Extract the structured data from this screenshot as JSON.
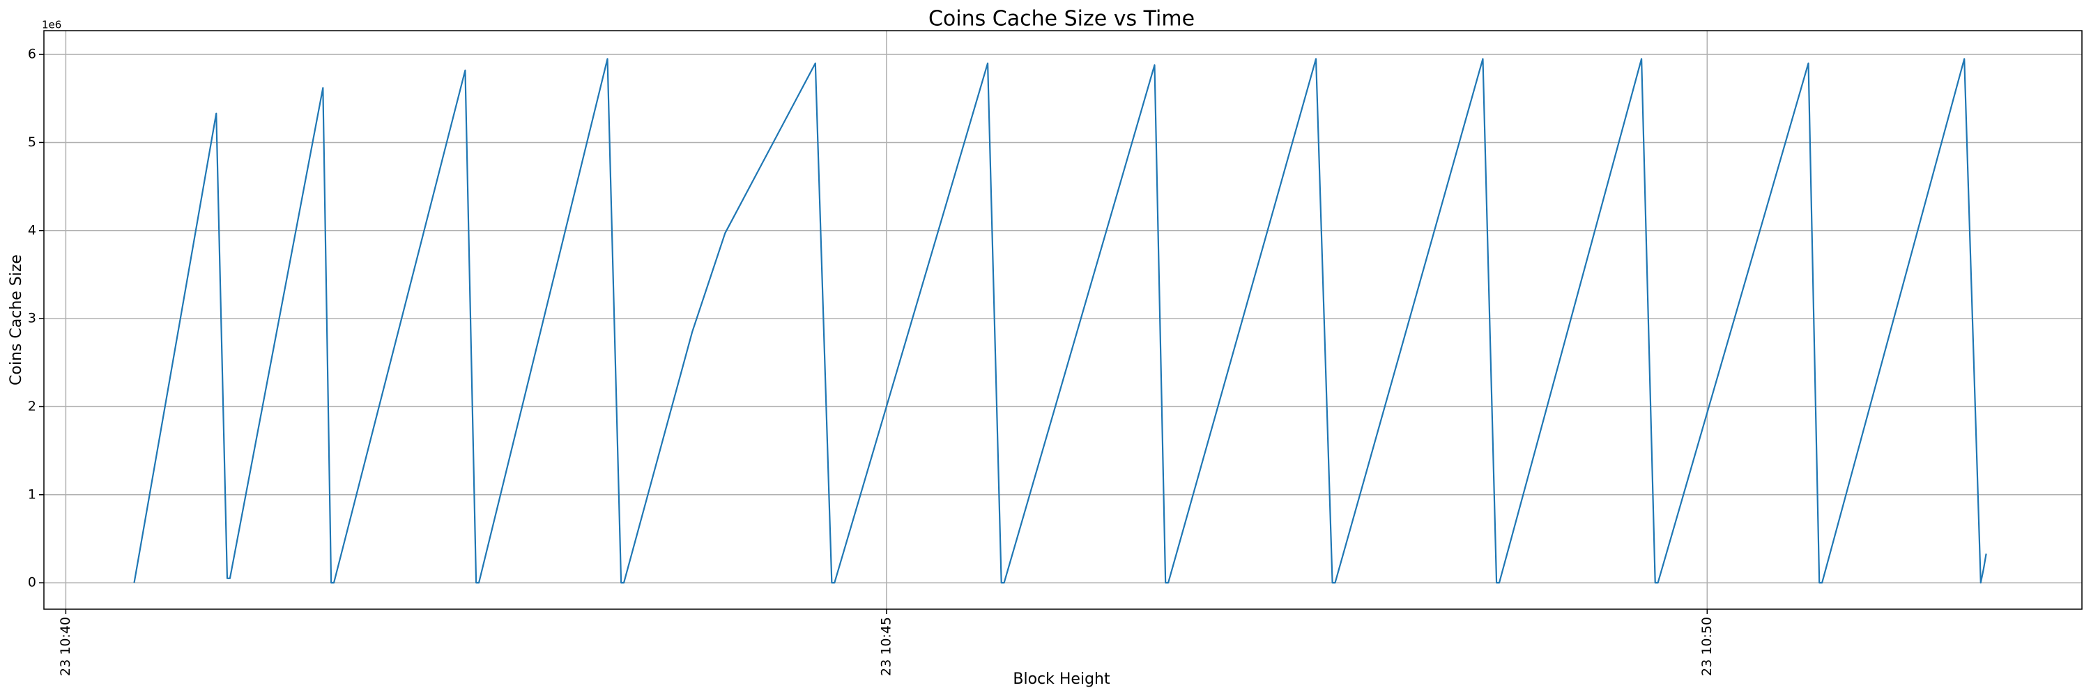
{
  "chart_data": {
    "type": "line",
    "title": "Coins Cache Size vs Time",
    "x_label": "Block Height",
    "y_label": "Coins Cache Size",
    "y_offset_label": "1e6",
    "grid": true,
    "xlim": [
      "10:39:52",
      "10:52:17"
    ],
    "xticks": [
      {
        "value": "10:40:00",
        "label": "23 10:40"
      },
      {
        "value": "10:45:00",
        "label": "23 10:45"
      },
      {
        "value": "10:50:00",
        "label": "23 10:50"
      }
    ],
    "ylim": [
      -300000,
      6270000
    ],
    "yticks": [
      0,
      {
        "value": 1000000,
        "label": "1"
      },
      {
        "value": 2000000,
        "label": "2"
      },
      {
        "value": 3000000,
        "label": "3"
      },
      {
        "value": 4000000,
        "label": "4"
      },
      {
        "value": 5000000,
        "label": "5"
      },
      {
        "value": 6000000,
        "label": "6"
      }
    ],
    "x": [
      "10:40:25",
      "10:40:55",
      "10:40:59",
      "10:41:00",
      "10:41:34",
      "10:41:37",
      "10:41:38",
      "10:42:26",
      "10:42:30",
      "10:42:31",
      "10:43:18",
      "10:43:23",
      "10:43:24",
      "10:43:49",
      "10:44:01",
      "10:44:34",
      "10:44:40",
      "10:44:41",
      "10:45:37",
      "10:45:42",
      "10:45:43",
      "10:46:38",
      "10:46:42",
      "10:46:43",
      "10:47:37",
      "10:47:43",
      "10:47:44",
      "10:48:38",
      "10:48:43",
      "10:48:44",
      "10:49:36",
      "10:49:41",
      "10:49:42",
      "10:50:37",
      "10:50:41",
      "10:50:42",
      "10:51:34",
      "10:51:40",
      "10:51:41",
      "10:51:42"
    ],
    "series": [
      {
        "name": "Coins Cache Size",
        "color": "#1f77b4",
        "values": [
          0,
          5330000,
          50000,
          50000,
          5620000,
          0,
          0,
          5820000,
          0,
          0,
          5950000,
          0,
          0,
          2850000,
          3970000,
          5900000,
          0,
          0,
          5900000,
          0,
          0,
          5880000,
          0,
          0,
          5950000,
          0,
          0,
          5950000,
          0,
          0,
          5950000,
          0,
          0,
          5900000,
          0,
          0,
          5950000,
          0,
          150000,
          330000
        ]
      }
    ]
  }
}
